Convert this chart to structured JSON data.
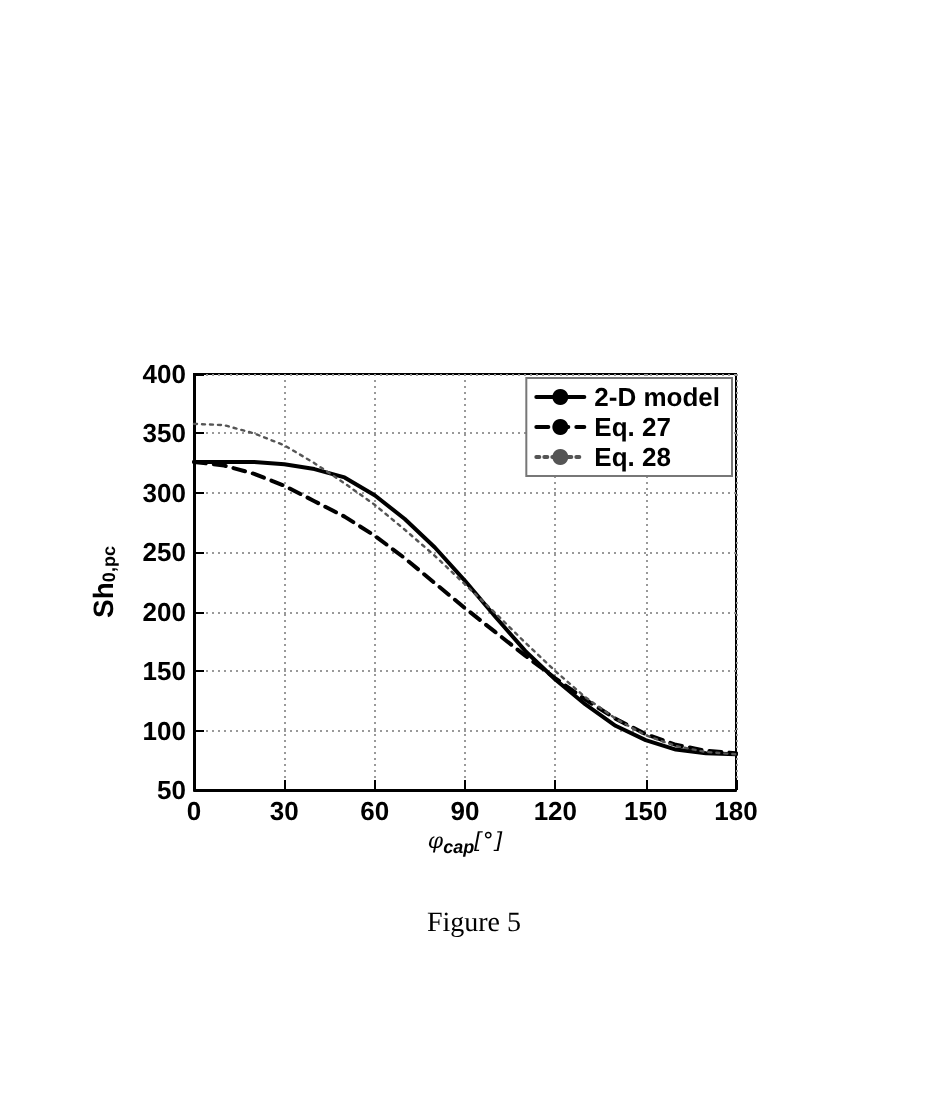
{
  "chart_data": {
    "type": "line",
    "xlabel": "φ$_{cap}$[°]",
    "ylabel": "Sh$_{0,pc}$",
    "x": [
      0,
      10,
      20,
      30,
      40,
      50,
      60,
      70,
      80,
      90,
      100,
      110,
      120,
      130,
      140,
      150,
      160,
      170,
      180
    ],
    "series": [
      {
        "name": "2-D model",
        "color": "#000000",
        "line_style": "solid",
        "values": [
          326,
          326,
          326,
          324,
          320,
          313,
          298,
          278,
          254,
          226,
          196,
          167,
          143,
          122,
          104,
          92,
          84,
          81,
          80
        ]
      },
      {
        "name": "Eq. 27",
        "color": "#000000",
        "line_style": "dashed",
        "values": [
          326,
          323,
          316,
          306,
          293,
          280,
          264,
          245,
          224,
          203,
          183,
          163,
          144,
          126,
          110,
          97,
          88,
          83,
          81
        ]
      },
      {
        "name": "Eq. 28",
        "color": "#555555",
        "line_style": "dotted",
        "values": [
          358,
          357,
          350,
          340,
          325,
          308,
          290,
          269,
          247,
          223,
          199,
          174,
          150,
          128,
          110,
          96,
          87,
          82,
          80
        ]
      }
    ],
    "xlim": [
      0,
      180
    ],
    "xticks": [
      0,
      30,
      60,
      90,
      120,
      150,
      180
    ],
    "ylim": [
      50,
      400
    ],
    "yticks": [
      50,
      100,
      150,
      200,
      250,
      300,
      350,
      400
    ],
    "grid": true,
    "legend": "top right",
    "marker": "none",
    "annotations": [
      "Figure 5"
    ]
  }
}
